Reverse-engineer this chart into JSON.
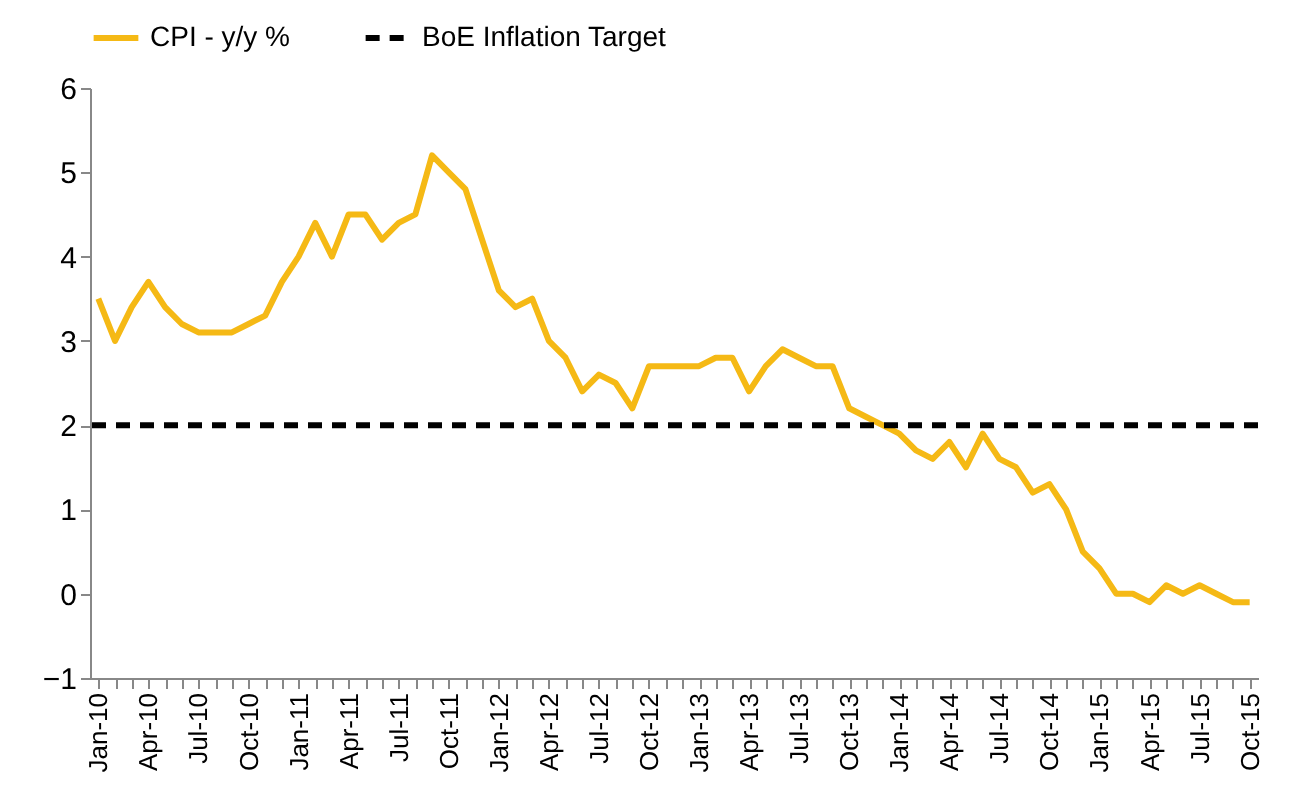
{
  "chart_data": {
    "type": "line",
    "categories": [
      "Jan-10",
      null,
      null,
      "Apr-10",
      null,
      null,
      "Jul-10",
      null,
      null,
      "Oct-10",
      null,
      null,
      "Jan-11",
      null,
      null,
      "Apr-11",
      null,
      null,
      "Jul-11",
      null,
      null,
      "Oct-11",
      null,
      null,
      "Jan-12",
      null,
      null,
      "Apr-12",
      null,
      null,
      "Jul-12",
      null,
      null,
      "Oct-12",
      null,
      null,
      "Jan-13",
      null,
      null,
      "Apr-13",
      null,
      null,
      "Jul-13",
      null,
      null,
      "Oct-13",
      null,
      null,
      "Jan-14",
      null,
      null,
      "Apr-14",
      null,
      null,
      "Jul-14",
      null,
      null,
      "Oct-14",
      null,
      null,
      "Jan-15",
      null,
      null,
      "Apr-15",
      null,
      null,
      "Jul-15",
      null,
      null,
      "Oct-15"
    ],
    "series": [
      {
        "name": "CPI - y/y %",
        "color": "#f5b915",
        "values": [
          3.5,
          3.0,
          3.4,
          3.7,
          3.4,
          3.2,
          3.1,
          3.1,
          3.1,
          3.2,
          3.3,
          3.7,
          4.0,
          4.4,
          4.0,
          4.5,
          4.5,
          4.2,
          4.4,
          4.5,
          5.2,
          5.0,
          4.8,
          4.2,
          3.6,
          3.4,
          3.5,
          3.0,
          2.8,
          2.4,
          2.6,
          2.5,
          2.2,
          2.7,
          2.7,
          2.7,
          2.7,
          2.8,
          2.8,
          2.4,
          2.7,
          2.9,
          2.8,
          2.7,
          2.7,
          2.2,
          2.1,
          2.0,
          1.9,
          1.7,
          1.6,
          1.8,
          1.5,
          1.9,
          1.6,
          1.5,
          1.2,
          1.3,
          1.0,
          0.5,
          0.3,
          0.0,
          0.0,
          -0.1,
          0.1,
          0.0,
          0.1,
          0.0,
          -0.1,
          -0.1
        ]
      }
    ],
    "ref_lines": [
      {
        "axis": "y",
        "value": 2,
        "label": "BoE Inflation Target",
        "color": "#000000",
        "line_style": "dashed"
      }
    ],
    "ylim": [
      -1,
      6
    ],
    "yticks": [
      -1,
      0,
      1,
      2,
      3,
      4,
      5,
      6
    ],
    "grid": false,
    "legend": "top"
  }
}
